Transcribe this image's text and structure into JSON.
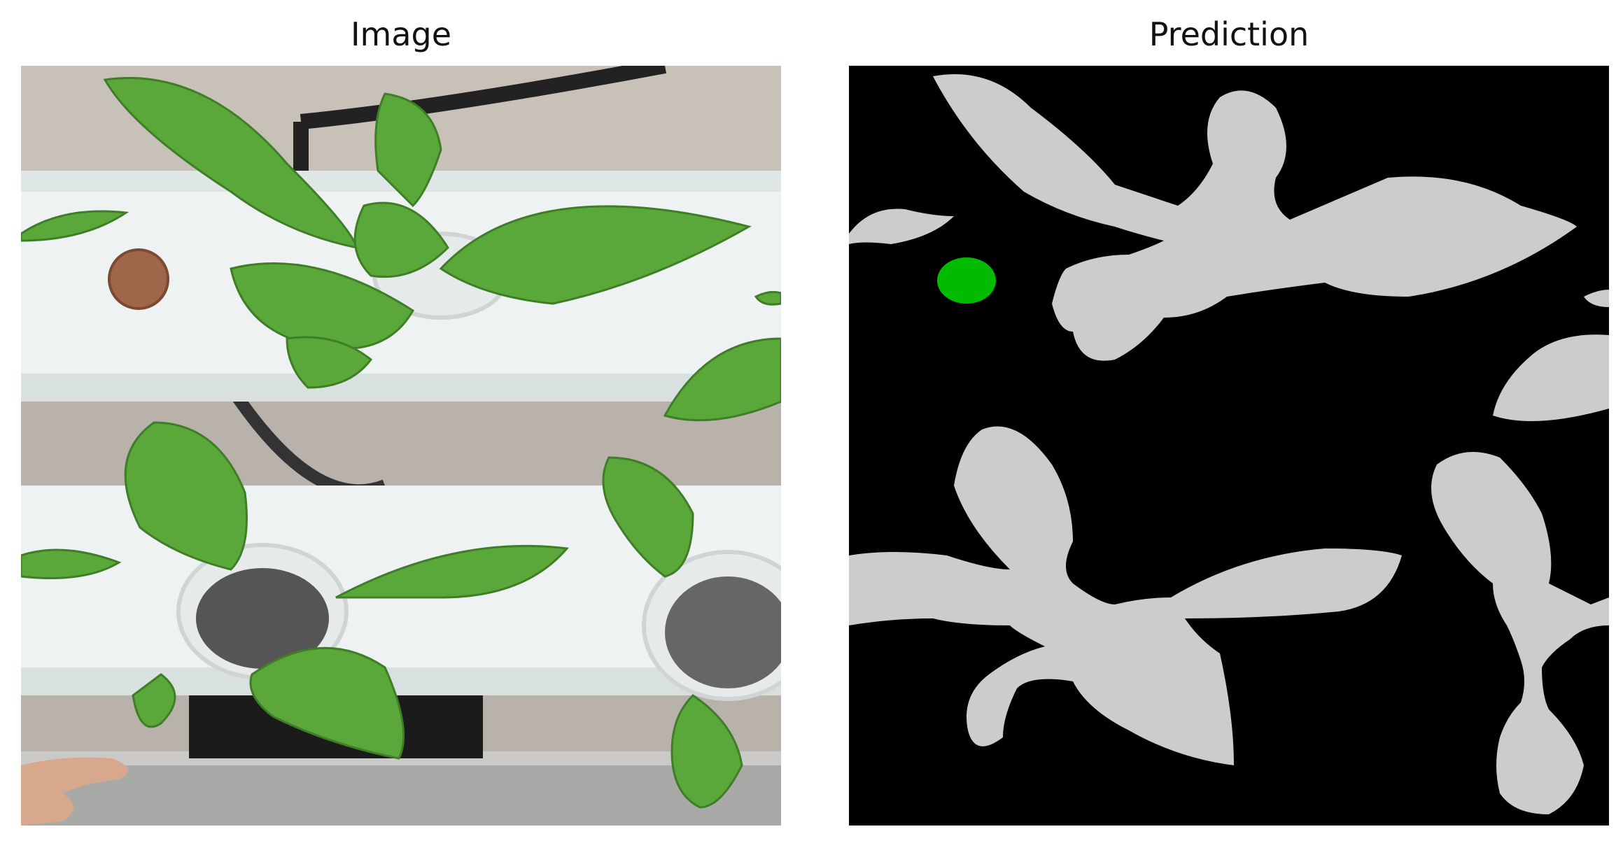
{
  "figure": {
    "left_panel": {
      "title": "Image"
    },
    "right_panel": {
      "title": "Prediction"
    }
  },
  "colors": {
    "background": "#000000",
    "leaf_mask": "#cccccc",
    "coin_mask": "#00bb00",
    "leaf_green": "#5aa83a",
    "pipe_white": "#eef3f3",
    "floor": "#b9b3ab"
  },
  "icons": [
    "photo-plants",
    "segmentation-mask"
  ]
}
